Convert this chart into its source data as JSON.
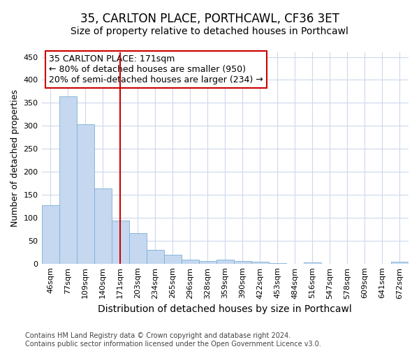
{
  "title": "35, CARLTON PLACE, PORTHCAWL, CF36 3ET",
  "subtitle": "Size of property relative to detached houses in Porthcawl",
  "xlabel": "Distribution of detached houses by size in Porthcawl",
  "ylabel": "Number of detached properties",
  "categories": [
    "46sqm",
    "77sqm",
    "109sqm",
    "140sqm",
    "171sqm",
    "203sqm",
    "234sqm",
    "265sqm",
    "296sqm",
    "328sqm",
    "359sqm",
    "390sqm",
    "422sqm",
    "453sqm",
    "484sqm",
    "516sqm",
    "547sqm",
    "578sqm",
    "609sqm",
    "641sqm",
    "672sqm"
  ],
  "values": [
    127,
    365,
    304,
    164,
    93,
    67,
    30,
    20,
    8,
    6,
    8,
    5,
    4,
    1,
    0,
    2,
    0,
    0,
    0,
    0,
    4
  ],
  "bar_color": "#c5d8f0",
  "bar_edge_color": "#7bafd4",
  "vline_x": 4,
  "vline_color": "#cc0000",
  "annotation_line1": "35 CARLTON PLACE: 171sqm",
  "annotation_line2": "← 80% of detached houses are smaller (950)",
  "annotation_line3": "20% of semi-detached houses are larger (234) →",
  "annotation_box_color": "#ffffff",
  "annotation_box_edge_color": "#cc0000",
  "ylim": [
    0,
    460
  ],
  "yticks": [
    0,
    50,
    100,
    150,
    200,
    250,
    300,
    350,
    400,
    450
  ],
  "bg_color": "#ffffff",
  "grid_color": "#ccd8ec",
  "footer": "Contains HM Land Registry data © Crown copyright and database right 2024.\nContains public sector information licensed under the Open Government Licence v3.0.",
  "title_fontsize": 12,
  "subtitle_fontsize": 10,
  "xlabel_fontsize": 10,
  "ylabel_fontsize": 9,
  "tick_fontsize": 8,
  "annotation_fontsize": 9,
  "footer_fontsize": 7
}
